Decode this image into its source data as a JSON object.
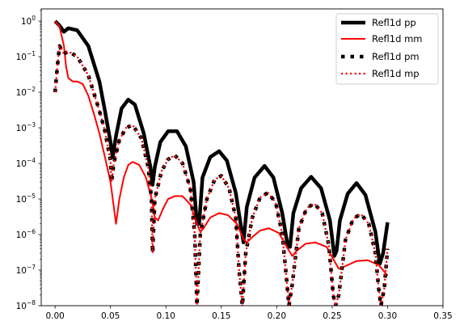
{
  "chart_data": {
    "type": "line",
    "title": "",
    "xlabel": "",
    "ylabel": "",
    "xlim": [
      -0.0125,
      0.35
    ],
    "ylim": [
      1e-08,
      2.2
    ],
    "yscale": "log",
    "grid": false,
    "legend_position": "top-right",
    "x_ticks": [
      {
        "value": 0.0,
        "label": "0.00"
      },
      {
        "value": 0.05,
        "label": "0.05"
      },
      {
        "value": 0.1,
        "label": "0.10"
      },
      {
        "value": 0.15,
        "label": "0.15"
      },
      {
        "value": 0.2,
        "label": "0.20"
      },
      {
        "value": 0.25,
        "label": "0.25"
      },
      {
        "value": 0.3,
        "label": "0.30"
      },
      {
        "value": 0.35,
        "label": "0.35"
      }
    ],
    "y_ticks": [
      {
        "value": 1e-08,
        "base": "10",
        "exp": "−8"
      },
      {
        "value": 1e-07,
        "base": "10",
        "exp": "−7"
      },
      {
        "value": 1e-06,
        "base": "10",
        "exp": "−6"
      },
      {
        "value": 1e-05,
        "base": "10",
        "exp": "−5"
      },
      {
        "value": 0.0001,
        "base": "10",
        "exp": "−4"
      },
      {
        "value": 0.001,
        "base": "10",
        "exp": "−3"
      },
      {
        "value": 0.01,
        "base": "10",
        "exp": "−2"
      },
      {
        "value": 0.1,
        "base": "10",
        "exp": "−1"
      },
      {
        "value": 1,
        "base": "10",
        "exp": "0"
      }
    ],
    "series": [
      {
        "name": "Refl1d pp",
        "color": "#000000",
        "style": "solid-thick",
        "x": [
          0.0,
          0.004,
          0.008,
          0.012,
          0.02,
          0.03,
          0.04,
          0.045,
          0.05,
          0.052,
          0.055,
          0.06,
          0.066,
          0.072,
          0.08,
          0.086,
          0.088,
          0.09,
          0.095,
          0.102,
          0.11,
          0.118,
          0.125,
          0.128,
          0.13,
          0.133,
          0.14,
          0.148,
          0.155,
          0.163,
          0.168,
          0.17,
          0.173,
          0.18,
          0.189,
          0.197,
          0.205,
          0.21,
          0.212,
          0.215,
          0.222,
          0.231,
          0.24,
          0.248,
          0.252,
          0.254,
          0.257,
          0.264,
          0.272,
          0.28,
          0.289,
          0.293,
          0.296,
          0.3
        ],
        "y": [
          1.0,
          0.75,
          0.5,
          0.63,
          0.55,
          0.2,
          0.02,
          0.003,
          0.0004,
          0.00015,
          0.0006,
          0.0035,
          0.0062,
          0.0045,
          0.0007,
          8e-05,
          2.5e-05,
          8e-05,
          0.0004,
          0.0008,
          0.0008,
          0.0003,
          3e-05,
          2e-06,
          2e-06,
          4e-05,
          0.00015,
          0.00022,
          0.00012,
          1.5e-05,
          1.5e-06,
          6e-07,
          6e-06,
          4e-05,
          8.5e-05,
          4e-05,
          4e-06,
          4.5e-07,
          4.5e-07,
          4e-06,
          2e-05,
          4.2e-05,
          2e-05,
          2.5e-06,
          2.5e-07,
          3.5e-07,
          2.5e-06,
          1.4e-05,
          2.8e-05,
          1.3e-05,
          1.2e-06,
          1.5e-07,
          3e-07,
          2.2e-06
        ]
      },
      {
        "name": "Refl1d mm",
        "color": "#ff0000",
        "style": "solid",
        "x": [
          0.0,
          0.004,
          0.008,
          0.01,
          0.012,
          0.016,
          0.02,
          0.025,
          0.03,
          0.035,
          0.04,
          0.045,
          0.05,
          0.053,
          0.055,
          0.058,
          0.062,
          0.066,
          0.07,
          0.076,
          0.082,
          0.088,
          0.09,
          0.093,
          0.097,
          0.102,
          0.108,
          0.115,
          0.122,
          0.128,
          0.131,
          0.134,
          0.14,
          0.148,
          0.156,
          0.164,
          0.17,
          0.173,
          0.178,
          0.185,
          0.193,
          0.202,
          0.21,
          0.214,
          0.218,
          0.226,
          0.235,
          0.245,
          0.252,
          0.256,
          0.262,
          0.272,
          0.282,
          0.292,
          0.3
        ],
        "y": [
          1.0,
          0.7,
          0.2,
          0.05,
          0.025,
          0.02,
          0.02,
          0.017,
          0.008,
          0.0025,
          0.0007,
          0.00015,
          3e-05,
          6e-06,
          2e-06,
          1e-05,
          4e-05,
          9e-05,
          0.00011,
          9e-05,
          4e-05,
          8e-06,
          3e-06,
          2.5e-06,
          5e-06,
          1e-05,
          1.2e-05,
          1.2e-05,
          7e-06,
          2e-06,
          1.2e-06,
          1.5e-06,
          3e-06,
          4e-06,
          3.5e-06,
          2e-06,
          7.5e-07,
          6e-07,
          8.5e-07,
          1.3e-06,
          1.5e-06,
          1.1e-06,
          4e-07,
          2.5e-07,
          3.5e-07,
          5.5e-07,
          6e-07,
          4.5e-07,
          1.8e-07,
          1.1e-07,
          1.3e-07,
          1.8e-07,
          1.9e-07,
          1.4e-07,
          7e-08
        ]
      },
      {
        "name": "Refl1d pm",
        "color": "#000000",
        "style": "dotted-thick",
        "x": [
          0.0,
          0.002,
          0.004,
          0.006,
          0.008,
          0.012,
          0.02,
          0.03,
          0.04,
          0.045,
          0.05,
          0.051,
          0.053,
          0.058,
          0.064,
          0.07,
          0.078,
          0.084,
          0.087,
          0.088,
          0.09,
          0.096,
          0.102,
          0.108,
          0.115,
          0.122,
          0.126,
          0.128,
          0.131,
          0.137,
          0.144,
          0.15,
          0.157,
          0.163,
          0.166,
          0.169,
          0.172,
          0.178,
          0.185,
          0.192,
          0.199,
          0.205,
          0.209,
          0.211,
          0.214,
          0.22,
          0.227,
          0.234,
          0.241,
          0.247,
          0.251,
          0.253,
          0.256,
          0.262,
          0.269,
          0.276,
          0.283,
          0.289,
          0.292,
          0.294,
          0.297,
          0.3
        ],
        "y": [
          0.01,
          0.05,
          0.2,
          0.15,
          0.12,
          0.14,
          0.1,
          0.03,
          0.003,
          0.0008,
          0.00012,
          3e-05,
          0.0001,
          0.00045,
          0.001,
          0.0012,
          0.0005,
          8e-05,
          1e-05,
          3e-07,
          1e-05,
          6e-05,
          0.00013,
          0.00017,
          0.0001,
          2e-05,
          1e-06,
          1e-08,
          1e-06,
          1e-05,
          3.5e-05,
          4.5e-05,
          2e-05,
          3e-06,
          1e-07,
          1e-08,
          3e-07,
          3e-06,
          1.1e-05,
          1.5e-05,
          8e-06,
          1e-06,
          5e-08,
          1e-08,
          4e-08,
          1.5e-06,
          5.5e-06,
          7.5e-06,
          4e-06,
          5e-07,
          2e-08,
          1e-08,
          2e-08,
          7e-07,
          2.8e-06,
          3.8e-06,
          2e-06,
          3e-07,
          3e-08,
          1e-08,
          3e-08,
          4e-07
        ]
      },
      {
        "name": "Refl1d mp",
        "color": "#ff0000",
        "style": "dotted",
        "x": [
          0.0,
          0.002,
          0.004,
          0.006,
          0.008,
          0.012,
          0.02,
          0.03,
          0.04,
          0.045,
          0.05,
          0.051,
          0.053,
          0.058,
          0.064,
          0.07,
          0.078,
          0.084,
          0.087,
          0.088,
          0.09,
          0.096,
          0.102,
          0.108,
          0.115,
          0.122,
          0.126,
          0.128,
          0.131,
          0.137,
          0.144,
          0.15,
          0.157,
          0.163,
          0.166,
          0.169,
          0.172,
          0.178,
          0.185,
          0.192,
          0.199,
          0.205,
          0.209,
          0.211,
          0.214,
          0.22,
          0.227,
          0.234,
          0.241,
          0.247,
          0.251,
          0.253,
          0.256,
          0.262,
          0.269,
          0.276,
          0.283,
          0.289,
          0.292,
          0.294,
          0.297,
          0.3
        ],
        "y": [
          0.01,
          0.05,
          0.2,
          0.15,
          0.12,
          0.14,
          0.1,
          0.03,
          0.003,
          0.0008,
          0.00012,
          3e-05,
          0.0001,
          0.00045,
          0.001,
          0.0012,
          0.0005,
          8e-05,
          1e-05,
          3e-07,
          1e-05,
          6e-05,
          0.00013,
          0.00017,
          0.0001,
          2e-05,
          1e-06,
          1e-08,
          1e-06,
          1e-05,
          3.5e-05,
          4.5e-05,
          2e-05,
          3e-06,
          1e-07,
          1e-08,
          3e-07,
          3e-06,
          1.1e-05,
          1.5e-05,
          8e-06,
          1e-06,
          5e-08,
          1e-08,
          4e-08,
          1.5e-06,
          5.5e-06,
          7.5e-06,
          4e-06,
          5e-07,
          2e-08,
          1e-08,
          2e-08,
          7e-07,
          2.8e-06,
          3.8e-06,
          2e-06,
          3e-07,
          3e-08,
          1e-08,
          3e-08,
          4e-07
        ]
      }
    ]
  }
}
